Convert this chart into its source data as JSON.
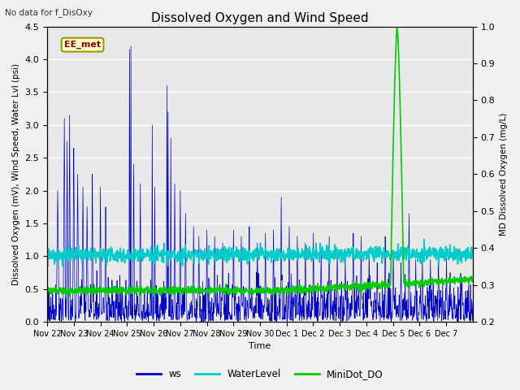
{
  "title": "Dissolved Oxygen and Wind Speed",
  "top_left_text": "No data for f_DisOxy",
  "annotation_text": "EE_met",
  "xlabel": "Time",
  "ylabel_left": "Dissolved Oxygen (mV), Wind Speed, Water Lvl (psi)",
  "ylabel_right": "MD Dissolved Oxygen (mg/L)",
  "ylim_left": [
    0.0,
    4.5
  ],
  "ylim_right": [
    0.2,
    1.0
  ],
  "bg_color": "#e8e8e8",
  "ws_color": "#0000cc",
  "water_level_color": "#00cccc",
  "minidot_color": "#00cc00",
  "legend_labels": [
    "ws",
    "WaterLevel",
    "MiniDot_DO"
  ],
  "xtick_labels": [
    "Nov 22",
    "Nov 23",
    "Nov 24",
    "Nov 25",
    "Nov 26",
    "Nov 27",
    "Nov 28",
    "Nov 29",
    "Nov 30",
    "Dec 1",
    "Dec 2",
    "Dec 3",
    "Dec 4",
    "Dec 5",
    "Dec 6",
    "Dec 7"
  ],
  "figsize": [
    6.4,
    4.8
  ],
  "dpi": 100
}
